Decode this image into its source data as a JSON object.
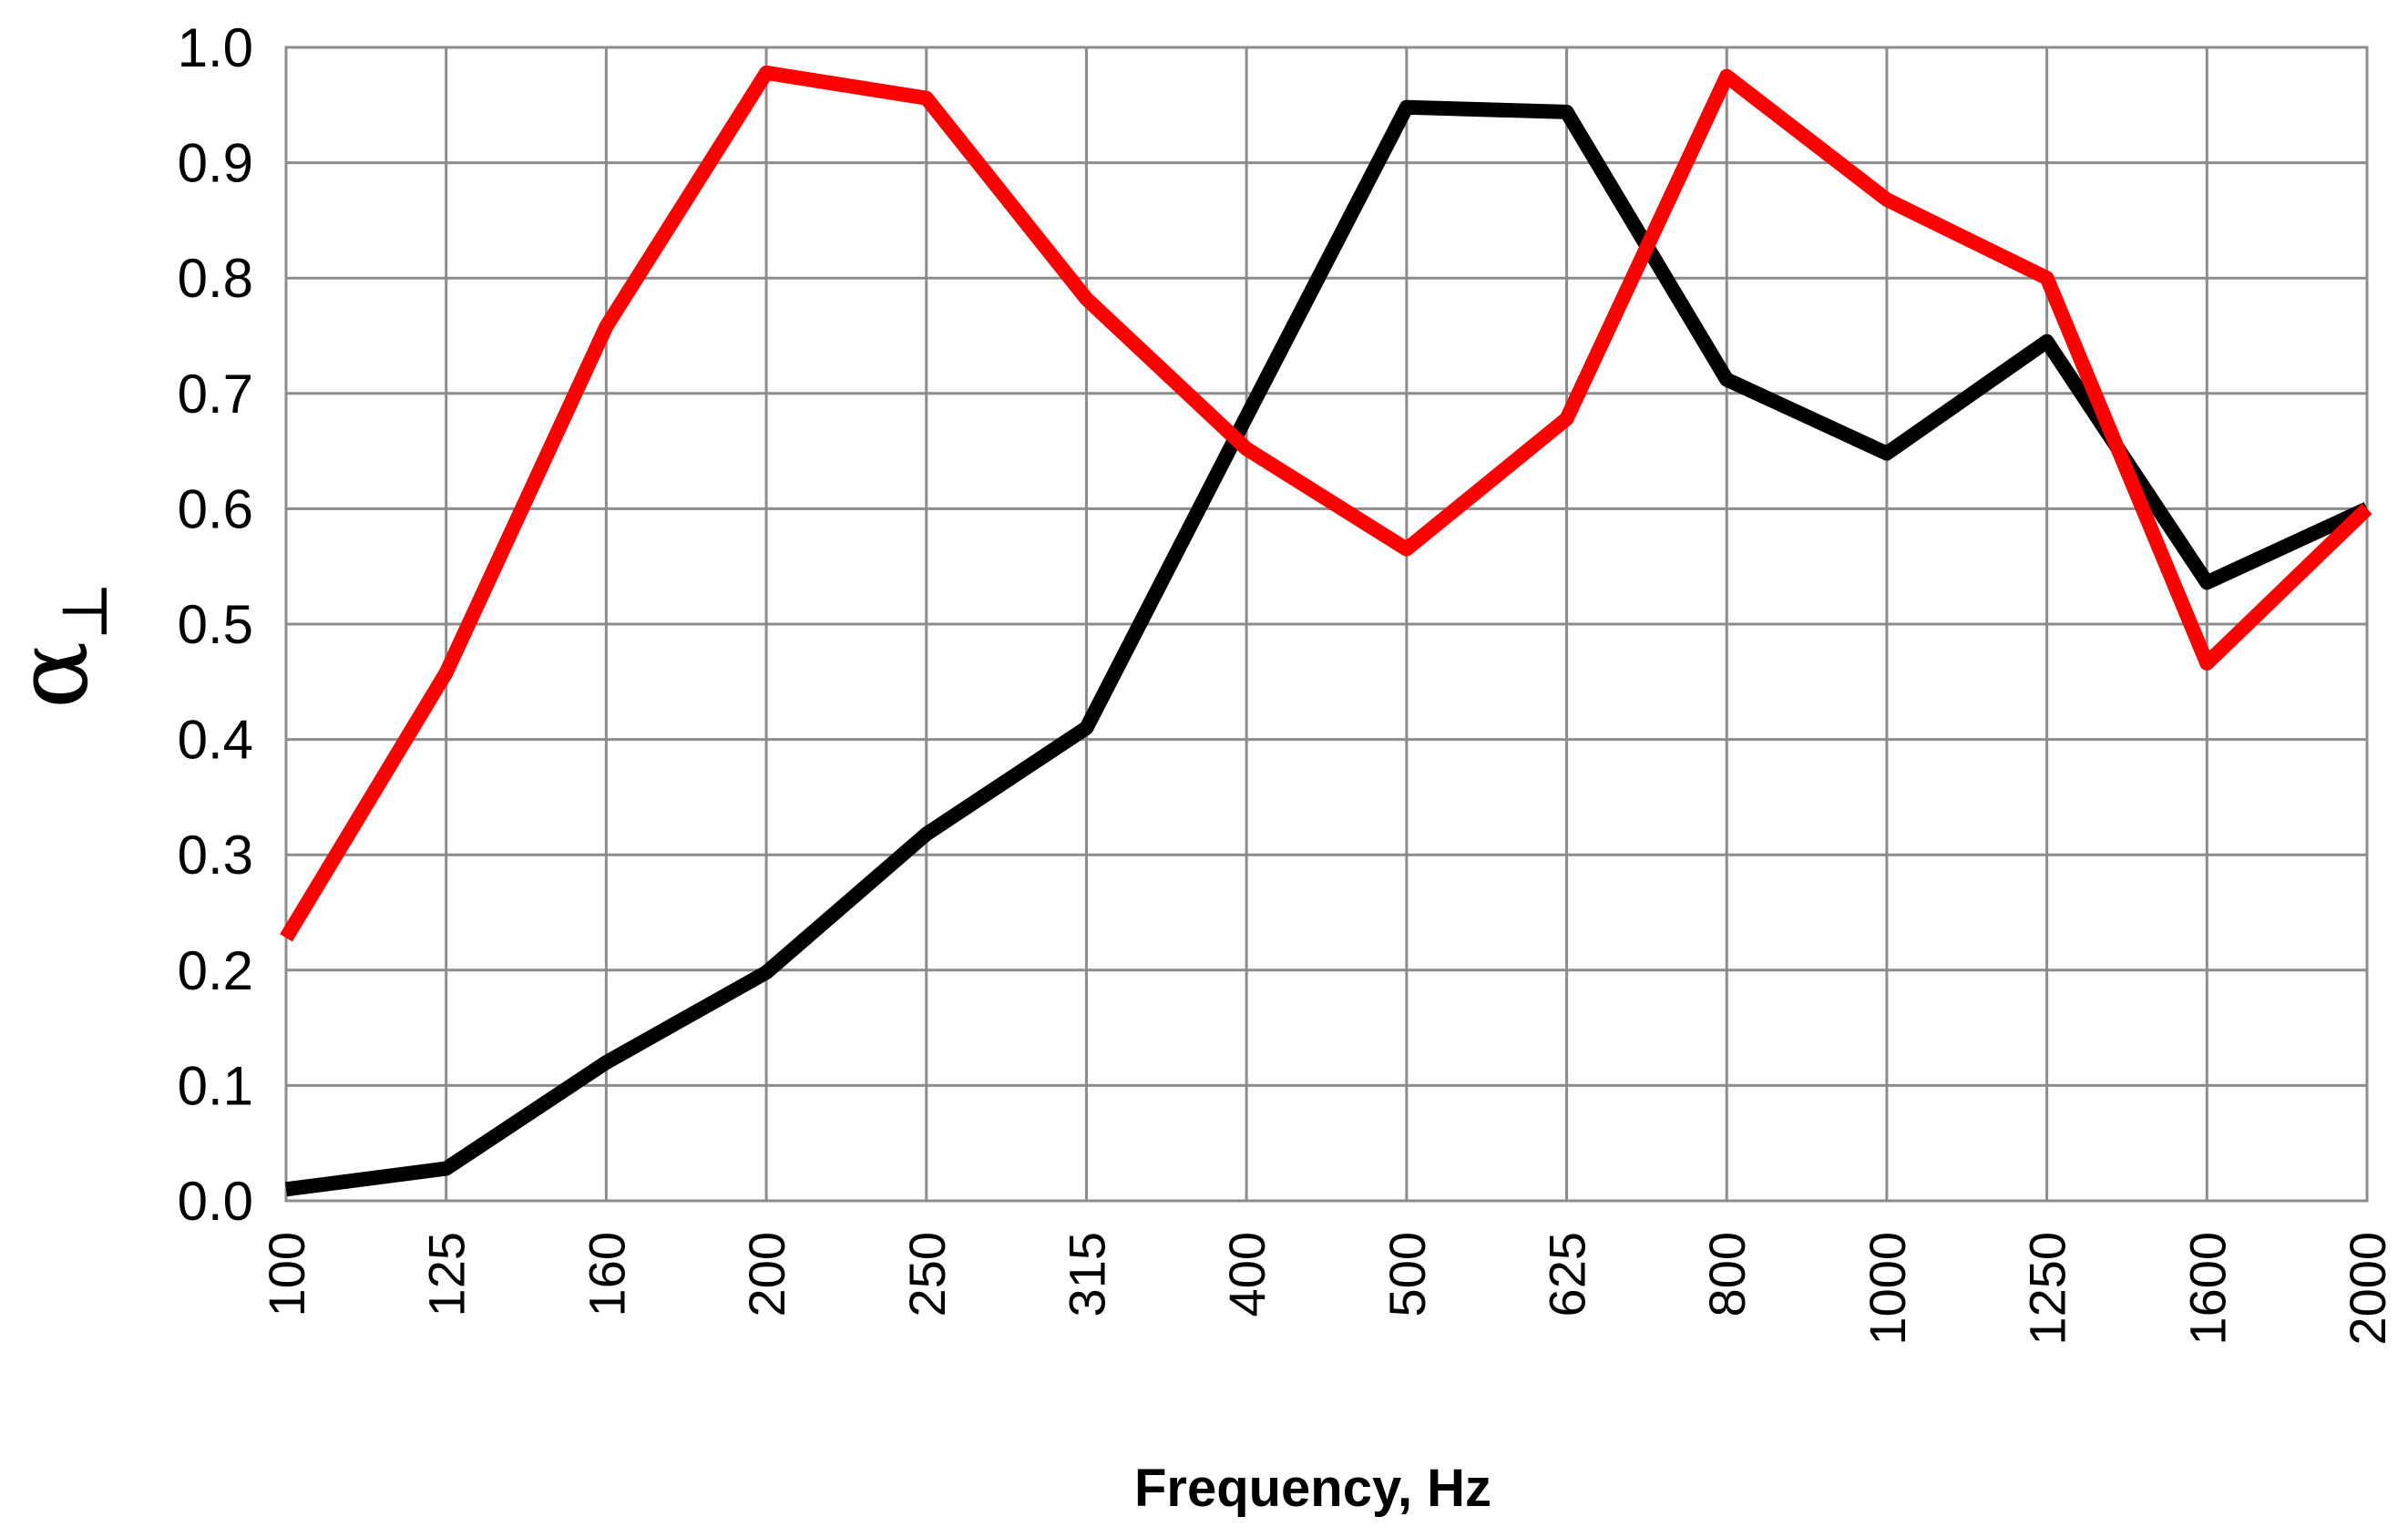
{
  "chart_data": {
    "type": "line",
    "title": "",
    "xlabel": "Frequency, Hz",
    "ylabel": "α⊥",
    "ylabel_main": "α",
    "ylabel_sub": "⊥",
    "categories": [
      "100",
      "125",
      "160",
      "200",
      "250",
      "315",
      "400",
      "500",
      "625",
      "800",
      "1000",
      "1250",
      "1600",
      "2000"
    ],
    "y_ticks": [
      "0.0",
      "0.1",
      "0.2",
      "0.3",
      "0.4",
      "0.5",
      "0.6",
      "0.7",
      "0.8",
      "0.9",
      "1.0"
    ],
    "ylim": [
      0,
      1
    ],
    "grid": true,
    "legend": "none",
    "series": [
      {
        "color": "#000000",
        "values": [
          0.01,
          0.028,
          0.12,
          0.198,
          0.318,
          0.41,
          0.68,
          0.948,
          0.944,
          0.712,
          0.648,
          0.745,
          0.536,
          0.6
        ]
      },
      {
        "color": "#ff0000",
        "values": [
          0.228,
          0.458,
          0.758,
          0.978,
          0.956,
          0.782,
          0.652,
          0.565,
          0.678,
          0.975,
          0.868,
          0.8,
          0.466,
          0.6
        ]
      }
    ]
  }
}
